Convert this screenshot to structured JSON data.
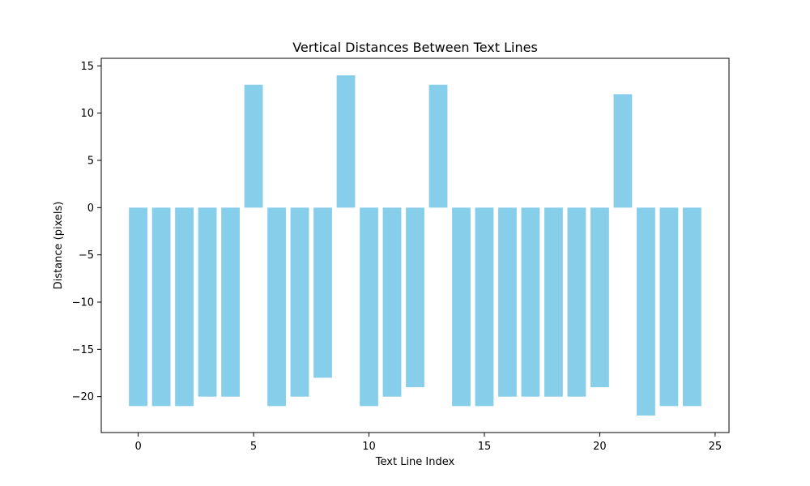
{
  "chart_data": {
    "type": "bar",
    "title": "Vertical Distances Between Text Lines",
    "xlabel": "Text Line Index",
    "ylabel": "Distance (pixels)",
    "x": [
      0,
      1,
      2,
      3,
      4,
      5,
      6,
      7,
      8,
      9,
      10,
      11,
      12,
      13,
      14,
      15,
      16,
      17,
      18,
      19,
      20,
      21,
      22,
      23,
      24
    ],
    "values": [
      -21,
      -21,
      -21,
      -20,
      -20,
      13,
      -21,
      -20,
      -18,
      14,
      -21,
      -20,
      -19,
      13,
      -21,
      -21,
      -20,
      -20,
      -20,
      -20,
      -19,
      12,
      -22,
      -21,
      -21
    ],
    "xlim": [
      -1.6,
      25.6
    ],
    "ylim": [
      -23.8,
      15.8
    ],
    "xticks": [
      0,
      5,
      10,
      15,
      20,
      25
    ],
    "yticks": [
      -20,
      -15,
      -10,
      -5,
      0,
      5,
      10,
      15
    ],
    "xtick_labels": [
      "0",
      "5",
      "10",
      "15",
      "20",
      "25"
    ],
    "ytick_labels": [
      "−20",
      "−15",
      "−10",
      "−5",
      "0",
      "5",
      "10",
      "15"
    ],
    "bar_color": "#87CEEB",
    "grid": false,
    "legend": "none"
  }
}
